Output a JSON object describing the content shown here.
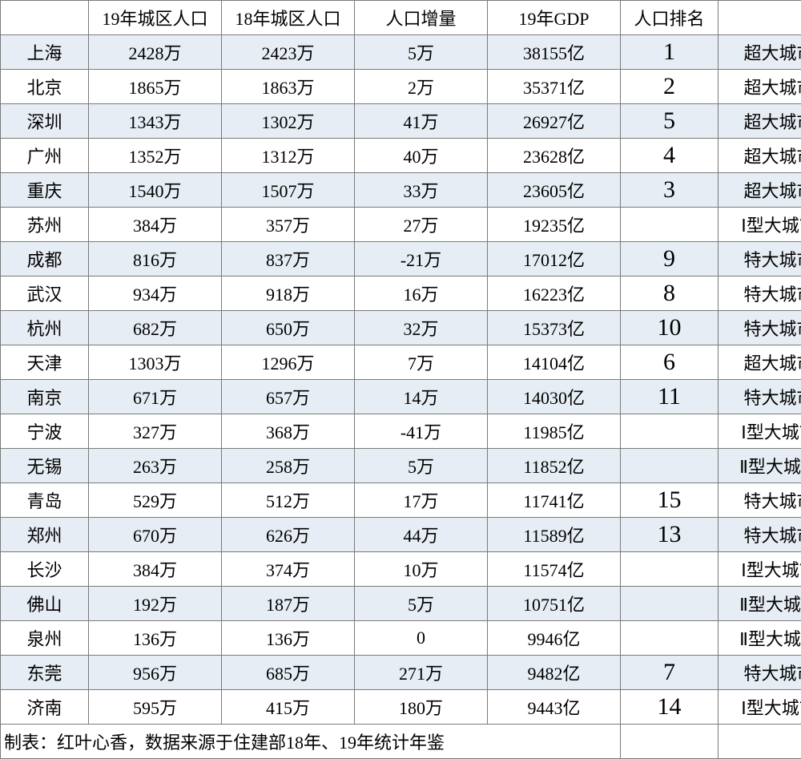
{
  "table": {
    "type": "table",
    "columns": [
      "",
      "19年城区人口",
      "18年城区人口",
      "人口增量",
      "19年GDP",
      "人口排名",
      ""
    ],
    "footer": "制表：红叶心香，数据来源于住建部18年、19年统计年鉴",
    "alt_row_color": "#e6edf4",
    "border_color": "#7a7a7a",
    "background_color": "#ffffff",
    "header_fontsize": 22,
    "cell_fontsize": 22,
    "rank_fontsize": 30,
    "rows": [
      {
        "city": "上海",
        "pop19": "2428万",
        "pop18": "2423万",
        "delta": "5万",
        "gdp": "38155亿",
        "rank": "1",
        "tier": "超大城市",
        "alt": true
      },
      {
        "city": "北京",
        "pop19": "1865万",
        "pop18": "1863万",
        "delta": "2万",
        "gdp": "35371亿",
        "rank": "2",
        "tier": "超大城市",
        "alt": false
      },
      {
        "city": "深圳",
        "pop19": "1343万",
        "pop18": "1302万",
        "delta": "41万",
        "gdp": "26927亿",
        "rank": "5",
        "tier": "超大城市",
        "alt": true
      },
      {
        "city": "广州",
        "pop19": "1352万",
        "pop18": "1312万",
        "delta": "40万",
        "gdp": "23628亿",
        "rank": "4",
        "tier": "超大城市",
        "alt": false
      },
      {
        "city": "重庆",
        "pop19": "1540万",
        "pop18": "1507万",
        "delta": "33万",
        "gdp": "23605亿",
        "rank": "3",
        "tier": "超大城市",
        "alt": true
      },
      {
        "city": "苏州",
        "pop19": "384万",
        "pop18": "357万",
        "delta": "27万",
        "gdp": "19235亿",
        "rank": "",
        "tier": "Ⅰ型大城市",
        "alt": false
      },
      {
        "city": "成都",
        "pop19": "816万",
        "pop18": "837万",
        "delta": "-21万",
        "gdp": "17012亿",
        "rank": "9",
        "tier": "特大城市",
        "alt": true
      },
      {
        "city": "武汉",
        "pop19": "934万",
        "pop18": "918万",
        "delta": "16万",
        "gdp": "16223亿",
        "rank": "8",
        "tier": "特大城市",
        "alt": false
      },
      {
        "city": "杭州",
        "pop19": "682万",
        "pop18": "650万",
        "delta": "32万",
        "gdp": "15373亿",
        "rank": "10",
        "tier": "特大城市",
        "alt": true
      },
      {
        "city": "天津",
        "pop19": "1303万",
        "pop18": "1296万",
        "delta": "7万",
        "gdp": "14104亿",
        "rank": "6",
        "tier": "超大城市",
        "alt": false
      },
      {
        "city": "南京",
        "pop19": "671万",
        "pop18": "657万",
        "delta": "14万",
        "gdp": "14030亿",
        "rank": "11",
        "tier": "特大城市",
        "alt": true
      },
      {
        "city": "宁波",
        "pop19": "327万",
        "pop18": "368万",
        "delta": "-41万",
        "gdp": "11985亿",
        "rank": "",
        "tier": "Ⅰ型大城市",
        "alt": false
      },
      {
        "city": "无锡",
        "pop19": "263万",
        "pop18": "258万",
        "delta": "5万",
        "gdp": "11852亿",
        "rank": "",
        "tier": "Ⅱ型大城市",
        "alt": true
      },
      {
        "city": "青岛",
        "pop19": "529万",
        "pop18": "512万",
        "delta": "17万",
        "gdp": "11741亿",
        "rank": "15",
        "tier": "特大城市",
        "alt": false
      },
      {
        "city": "郑州",
        "pop19": "670万",
        "pop18": "626万",
        "delta": "44万",
        "gdp": "11589亿",
        "rank": "13",
        "tier": "特大城市",
        "alt": true
      },
      {
        "city": "长沙",
        "pop19": "384万",
        "pop18": "374万",
        "delta": "10万",
        "gdp": "11574亿",
        "rank": "",
        "tier": "Ⅰ型大城市",
        "alt": false
      },
      {
        "city": "佛山",
        "pop19": "192万",
        "pop18": "187万",
        "delta": "5万",
        "gdp": "10751亿",
        "rank": "",
        "tier": "Ⅱ型大城市",
        "alt": true
      },
      {
        "city": "泉州",
        "pop19": "136万",
        "pop18": "136万",
        "delta": "0",
        "gdp": "9946亿",
        "rank": "",
        "tier": "Ⅱ型大城市",
        "alt": false
      },
      {
        "city": "东莞",
        "pop19": "956万",
        "pop18": "685万",
        "delta": "271万",
        "gdp": "9482亿",
        "rank": "7",
        "tier": "特大城市",
        "alt": true
      },
      {
        "city": "济南",
        "pop19": "595万",
        "pop18": "415万",
        "delta": "180万",
        "gdp": "9443亿",
        "rank": "14",
        "tier": "Ⅰ型大城市",
        "alt": false
      }
    ]
  }
}
